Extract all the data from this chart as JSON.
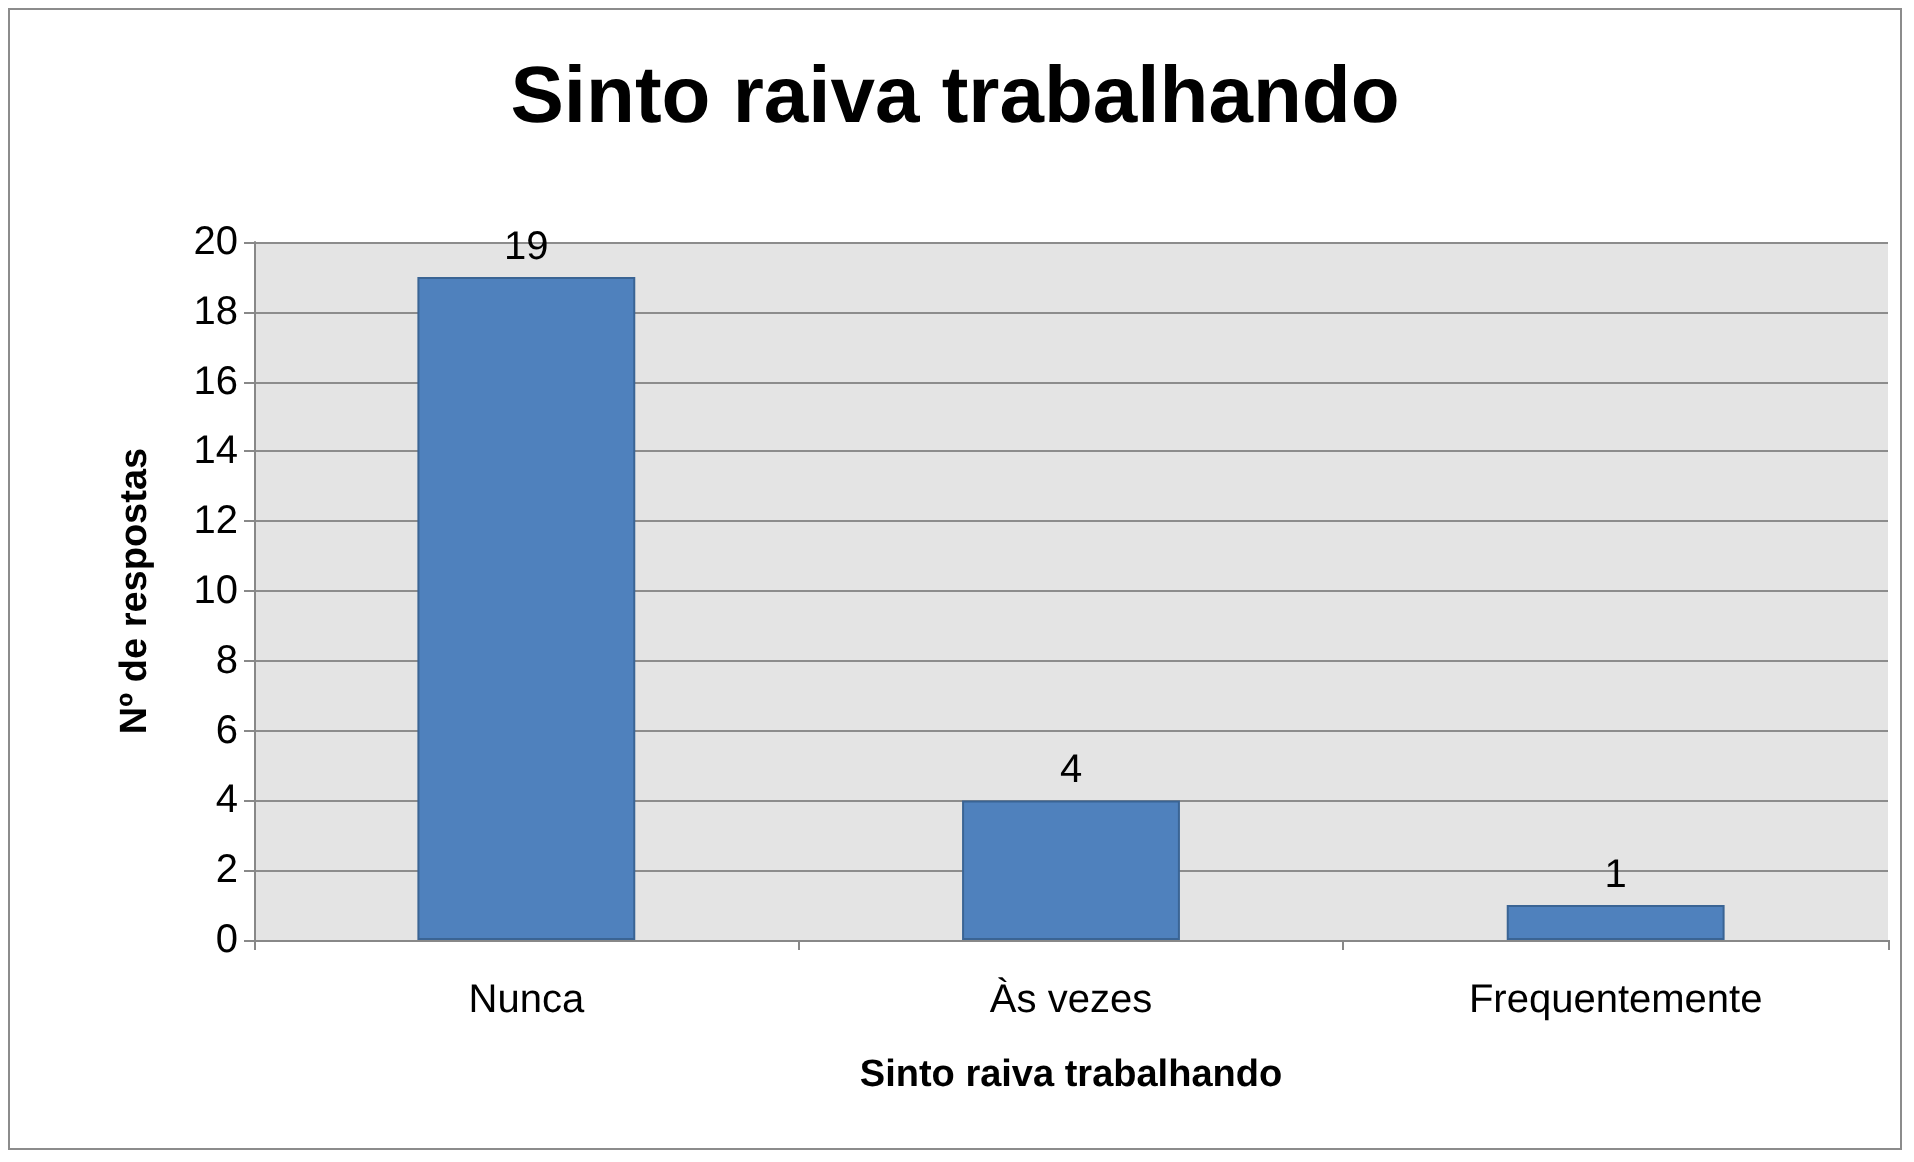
{
  "chart_data": {
    "type": "bar",
    "title": "Sinto raiva trabalhando",
    "xlabel": "Sinto raiva trabalhando",
    "ylabel": "Nº de respostas",
    "categories": [
      "Nunca",
      "Às vezes",
      "Frequentemente"
    ],
    "values": [
      19,
      4,
      1
    ],
    "color": "#4f81bd",
    "ylim": [
      0,
      20
    ],
    "yticks": [
      0,
      2,
      4,
      6,
      8,
      10,
      12,
      14,
      16,
      18,
      20
    ],
    "grid": "y",
    "data_labels": true
  }
}
